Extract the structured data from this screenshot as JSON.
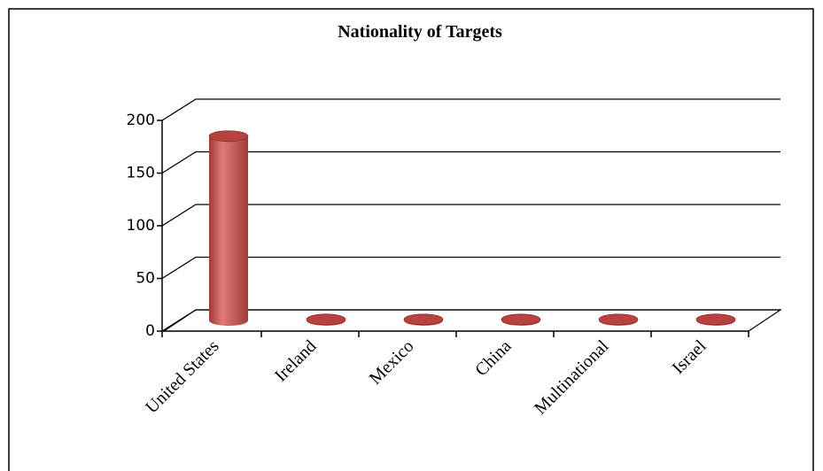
{
  "chart_data": {
    "type": "bar",
    "title": "Nationality of Targets",
    "categories": [
      "United States",
      "Ireland",
      "Mexico",
      "China",
      "Multinational",
      "Israel"
    ],
    "values": [
      175,
      1,
      1,
      1,
      1,
      1
    ],
    "color": "#c0504d",
    "ylim": [
      0,
      200
    ],
    "yticks": [
      0,
      50,
      100,
      150,
      200
    ],
    "grid": true
  }
}
